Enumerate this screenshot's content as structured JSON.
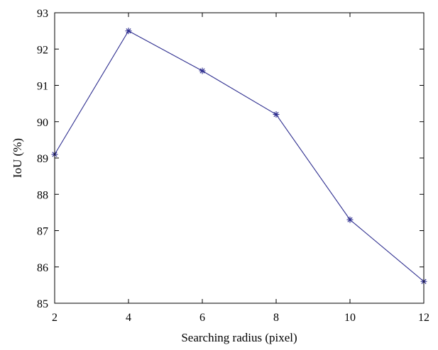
{
  "chart_data": {
    "type": "line",
    "title": "",
    "xlabel": "Searching radius (pixel)",
    "ylabel": "IoU (%)",
    "x": [
      2,
      4,
      6,
      8,
      10,
      12
    ],
    "xlim": [
      2,
      12
    ],
    "ylim": [
      85,
      93
    ],
    "xticks": [
      2,
      4,
      6,
      8,
      10,
      12
    ],
    "yticks": [
      85,
      86,
      87,
      88,
      89,
      90,
      91,
      92,
      93
    ],
    "grid": false,
    "series": [
      {
        "values": [
          89.1,
          92.5,
          91.4,
          90.2,
          87.3,
          85.6
        ],
        "color": "#2e2e8f",
        "marker": "asterisk"
      }
    ]
  }
}
